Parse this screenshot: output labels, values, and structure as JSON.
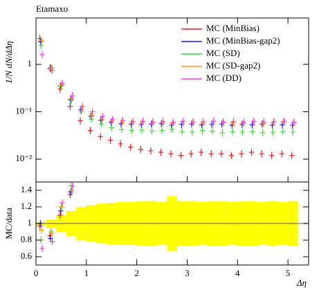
{
  "chart_data": [
    {
      "type": "scatter",
      "title": "Etamaxo",
      "ylabel": "1/N dN/dΔη",
      "log_y": true,
      "legend": "upper right",
      "x": [
        0.1,
        0.3,
        0.5,
        0.7,
        0.9,
        1.1,
        1.3,
        1.5,
        1.7,
        1.9,
        2.1,
        2.3,
        2.5,
        2.7,
        2.9,
        3.1,
        3.3,
        3.5,
        3.7,
        3.9,
        4.1,
        4.3,
        4.5,
        4.7,
        4.9,
        5.1
      ],
      "xlim": [
        0,
        5.41
      ],
      "ylim": [
        0.0033,
        9.5
      ],
      "yticks": [
        {
          "value": 0.01,
          "label": "10⁻²"
        },
        {
          "value": 0.1,
          "label": "10⁻¹"
        },
        1
      ],
      "series": [
        {
          "name": "MC (MinBias)",
          "color": "#e41a1c",
          "values": [
            3.5,
            0.8,
            0.3,
            0.13,
            0.065,
            0.04,
            0.03,
            0.025,
            0.021,
            0.018,
            0.016,
            0.015,
            0.014,
            0.013,
            0.012,
            0.013,
            0.014,
            0.013,
            0.013,
            0.012,
            0.013,
            0.014,
            0.013,
            0.012,
            0.013,
            0.012
          ]
        },
        {
          "name": "MC (MinBias-gap2)",
          "color": "#1a1aff",
          "values": [
            3.0,
            0.85,
            0.35,
            0.18,
            0.11,
            0.08,
            0.066,
            0.06,
            0.056,
            0.055,
            0.054,
            0.055,
            0.056,
            0.052,
            0.054,
            0.055,
            0.053,
            0.054,
            0.055,
            0.052,
            0.054,
            0.053,
            0.055,
            0.052,
            0.053,
            0.052
          ]
        },
        {
          "name": "MC (SD)",
          "color": "#33dd33",
          "values": [
            2.5,
            0.8,
            0.35,
            0.17,
            0.1,
            0.07,
            0.055,
            0.046,
            0.042,
            0.04,
            0.041,
            0.039,
            0.04,
            0.042,
            0.038,
            0.037,
            0.04,
            0.039,
            0.036,
            0.038,
            0.037,
            0.038,
            0.036,
            0.037,
            0.038,
            0.037
          ]
        },
        {
          "name": "MC (SD-gap2)",
          "color": "#ff9900",
          "values": [
            3.2,
            0.85,
            0.37,
            0.19,
            0.12,
            0.085,
            0.07,
            0.064,
            0.06,
            0.059,
            0.06,
            0.058,
            0.059,
            0.057,
            0.058,
            0.06,
            0.057,
            0.058,
            0.059,
            0.057,
            0.058,
            0.059,
            0.057,
            0.058,
            0.06,
            0.058
          ]
        },
        {
          "name": "MC (DD)",
          "color": "#ff33ff",
          "values": [
            1.6,
            0.75,
            0.4,
            0.22,
            0.13,
            0.1,
            0.08,
            0.07,
            0.065,
            0.062,
            0.063,
            0.061,
            0.062,
            0.06,
            0.063,
            0.061,
            0.062,
            0.063,
            0.061,
            0.062,
            0.06,
            0.063,
            0.061,
            0.062,
            0.063,
            0.061
          ]
        }
      ]
    },
    {
      "type": "ratio",
      "ylabel": "MC/data",
      "xlabel": "Δη",
      "x": [
        0.1,
        0.3,
        0.5,
        0.7,
        0.9,
        1.1,
        1.3,
        1.5,
        1.7,
        1.9,
        2.1,
        2.3,
        2.5,
        2.7,
        2.9,
        3.1,
        3.3,
        3.5,
        3.7,
        3.9,
        4.1,
        4.3,
        4.5,
        4.7,
        4.9,
        5.1
      ],
      "xlim": [
        0,
        5.41
      ],
      "xticks": [
        0,
        1,
        2,
        3,
        4,
        5
      ],
      "ylim": [
        0.5,
        1.5
      ],
      "yticks": [
        0.6,
        0.8,
        1,
        1.2,
        1.4
      ],
      "reference_line": 1,
      "band_color": "#ffff00",
      "band_errors": [
        0.02,
        0.05,
        0.1,
        0.15,
        0.2,
        0.22,
        0.24,
        0.25,
        0.26,
        0.26,
        0.27,
        0.27,
        0.26,
        0.33,
        0.27,
        0.27,
        0.26,
        0.27,
        0.27,
        0.26,
        0.27,
        0.27,
        0.26,
        0.27,
        0.26,
        0.27
      ],
      "series": [
        {
          "color": "#e41a1c",
          "values": [
            0.97,
            0.85,
            1.1,
            1.35,
            null,
            null,
            null,
            null,
            null,
            null,
            null,
            null,
            null,
            null,
            null,
            null,
            null,
            null,
            null,
            null,
            null,
            null,
            null,
            null,
            null,
            null
          ]
        },
        {
          "color": "#1a1aff",
          "values": [
            1.0,
            0.82,
            1.15,
            1.38,
            null,
            null,
            null,
            null,
            null,
            null,
            null,
            null,
            null,
            null,
            null,
            null,
            null,
            null,
            null,
            null,
            null,
            null,
            null,
            null,
            null,
            null
          ]
        },
        {
          "color": "#33dd33",
          "values": [
            0.8,
            0.9,
            1.2,
            1.45,
            null,
            null,
            null,
            null,
            null,
            null,
            null,
            null,
            null,
            null,
            null,
            null,
            null,
            null,
            null,
            null,
            null,
            null,
            null,
            null,
            null,
            null
          ]
        },
        {
          "color": "#ff9900",
          "values": [
            0.92,
            0.88,
            1.2,
            1.4,
            null,
            null,
            null,
            null,
            null,
            null,
            null,
            null,
            null,
            null,
            null,
            null,
            null,
            null,
            null,
            null,
            null,
            null,
            null,
            null,
            null,
            null
          ]
        },
        {
          "color": "#ff33ff",
          "values": [
            0.7,
            0.78,
            1.25,
            1.45,
            null,
            null,
            null,
            null,
            null,
            null,
            null,
            null,
            null,
            null,
            null,
            null,
            null,
            null,
            null,
            null,
            null,
            null,
            null,
            null,
            null,
            null
          ]
        }
      ]
    }
  ]
}
